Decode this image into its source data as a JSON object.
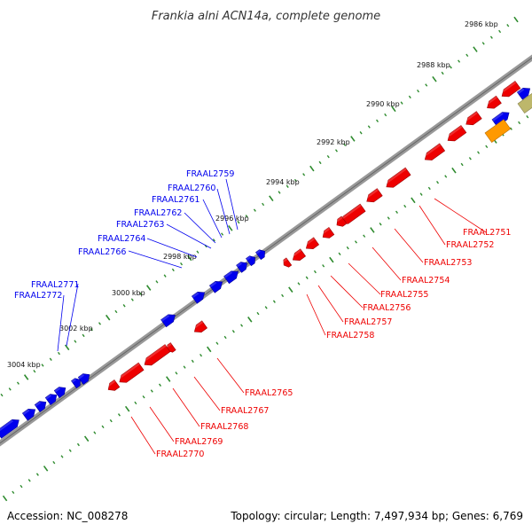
{
  "title": "Frankia alni ACN14a, complete genome",
  "footer": {
    "accession": "Accession: NC_008278",
    "summary": "Topology: circular; Length: 7,497,934 bp; Genes: 6,769"
  },
  "colors": {
    "forward": "#0000ee",
    "reverse": "#ee0000",
    "backbone": "#888888",
    "tick": "#2e8b2e",
    "special_orange": "#ff9900",
    "special_khaki": "#bdb76b"
  },
  "scale": {
    "unit": "kbp",
    "labels": [
      "2986 kbp",
      "2988 kbp",
      "2990 kbp",
      "2992 kbp",
      "2994 kbp",
      "2996 kbp",
      "2998 kbp",
      "3000 kbp",
      "3002 kbp",
      "3004 kbp"
    ]
  },
  "genes": {
    "forward_labels": [
      "FRAAL2759",
      "FRAAL2760",
      "FRAAL2761",
      "FRAAL2762",
      "FRAAL2763",
      "FRAAL2764",
      "FRAAL2766",
      "FRAAL2771",
      "FRAAL2772"
    ],
    "reverse_labels": [
      "FRAAL2751",
      "FRAAL2752",
      "FRAAL2753",
      "FRAAL2754",
      "FRAAL2755",
      "FRAAL2756",
      "FRAAL2757",
      "FRAAL2758",
      "FRAAL2765",
      "FRAAL2767",
      "FRAAL2768",
      "FRAAL2769",
      "FRAAL2770"
    ]
  }
}
